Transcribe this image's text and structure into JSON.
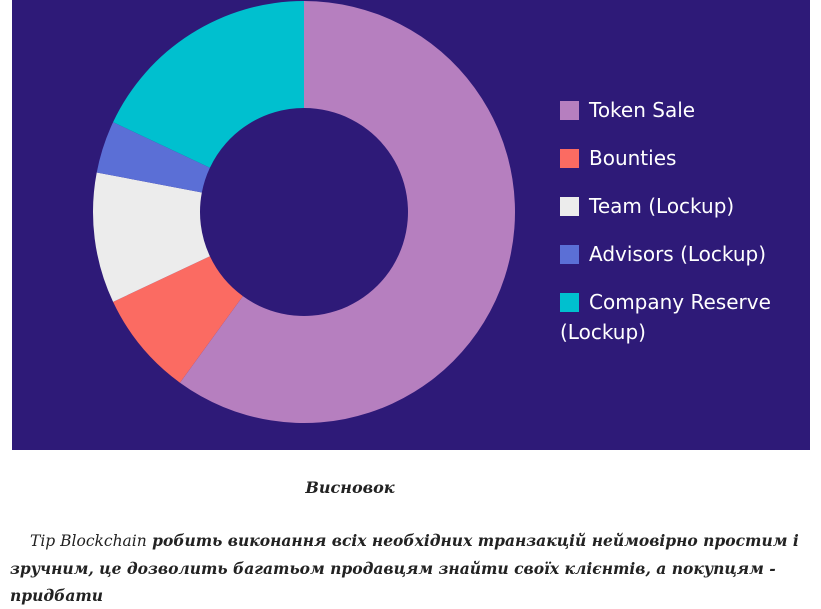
{
  "chart_data": {
    "type": "pie",
    "donut": true,
    "categories": [
      "Token Sale",
      "Bounties",
      "Team (Lockup)",
      "Advisors (Lockup)",
      "Company Reserve (Lockup)"
    ],
    "values": [
      60,
      8,
      10,
      4,
      18
    ],
    "unit": "%",
    "colors": [
      "#b67fbf",
      "#fb6b62",
      "#ececec",
      "#5b6fd6",
      "#00c0cf"
    ],
    "legend_position": "right",
    "title": ""
  },
  "legend": {
    "items": [
      {
        "label": "Token Sale",
        "color": "#b67fbf"
      },
      {
        "label": "Bounties",
        "color": "#fb6b62"
      },
      {
        "label": "Team (Lockup)",
        "color": "#ececec"
      },
      {
        "label": "Advisors (Lockup)",
        "color": "#5b6fd6"
      },
      {
        "label": "Company Reserve (Lockup)",
        "color": "#00c0cf"
      }
    ]
  },
  "caption": "Висновок",
  "paragraph": {
    "brand": "Tip Blockchain",
    "text": " робить виконання всіх необхідних транзакцій неймовірно простим і зручним, це дозволить багатьом продавцям знайти своїх клієнтів, а покупцям - придбати"
  },
  "colors": {
    "panel_bg": "#2e1a78",
    "text": "#222222"
  }
}
